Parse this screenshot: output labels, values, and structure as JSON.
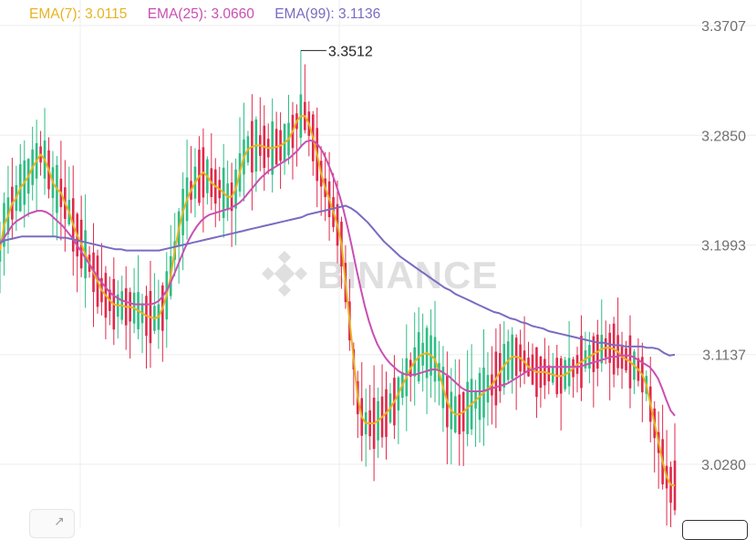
{
  "legend": [
    {
      "label": "EMA(7): 3.0115",
      "color": "#e6b422"
    },
    {
      "label": "EMA(25): 3.0660",
      "color": "#c94fb2"
    },
    {
      "label": "EMA(99): 3.1136",
      "color": "#7b6bc2"
    }
  ],
  "watermark": "BINANCE",
  "chart_data": {
    "type": "candlestick",
    "y_ticks": [
      "3.3707",
      "3.2850",
      "3.1993",
      "3.1137",
      "3.0280"
    ],
    "ylim": [
      2.975,
      3.398
    ],
    "grid": true,
    "high_annotation": "3.3512",
    "colors": {
      "up": "#2ebd85",
      "down": "#e0294a",
      "ema7": "#e6b422",
      "ema25": "#c94fb2",
      "ema99": "#7b6bc2"
    },
    "series": [
      {
        "name": "EMA(7)",
        "values": [
          3.195,
          3.215,
          3.222,
          3.232,
          3.236,
          3.244,
          3.248,
          3.253,
          3.26,
          3.265,
          3.27,
          3.266,
          3.258,
          3.248,
          3.243,
          3.24,
          3.232,
          3.225,
          3.215,
          3.207,
          3.2,
          3.192,
          3.185,
          3.178,
          3.171,
          3.164,
          3.16,
          3.156,
          3.153,
          3.152,
          3.152,
          3.151,
          3.151,
          3.15,
          3.148,
          3.146,
          3.144,
          3.143,
          3.142,
          3.143,
          3.15,
          3.16,
          3.175,
          3.195,
          3.212,
          3.225,
          3.235,
          3.242,
          3.248,
          3.253,
          3.256,
          3.253,
          3.248,
          3.245,
          3.243,
          3.24,
          3.237,
          3.237,
          3.243,
          3.256,
          3.268,
          3.274,
          3.276,
          3.277,
          3.277,
          3.276,
          3.275,
          3.275,
          3.276,
          3.277,
          3.279,
          3.282,
          3.288,
          3.296,
          3.3,
          3.3,
          3.294,
          3.283,
          3.27,
          3.255,
          3.244,
          3.235,
          3.225,
          3.215,
          3.2,
          3.17,
          3.14,
          3.11,
          3.08,
          3.065,
          3.06,
          3.06,
          3.06,
          3.062,
          3.065,
          3.068,
          3.072,
          3.077,
          3.083,
          3.09,
          3.096,
          3.103,
          3.108,
          3.112,
          3.114,
          3.115,
          3.113,
          3.11,
          3.1,
          3.088,
          3.077,
          3.07,
          3.067,
          3.067,
          3.069,
          3.072,
          3.075,
          3.078,
          3.081,
          3.084,
          3.087,
          3.09,
          3.095,
          3.1,
          3.105,
          3.109,
          3.112,
          3.112,
          3.111,
          3.108,
          3.104,
          3.102,
          3.1,
          3.1,
          3.1,
          3.099,
          3.098,
          3.097,
          3.097,
          3.098,
          3.1,
          3.103,
          3.106,
          3.108,
          3.11,
          3.112,
          3.114,
          3.116,
          3.118,
          3.119,
          3.119,
          3.118,
          3.116,
          3.112,
          3.11,
          3.108,
          3.105,
          3.102,
          3.098,
          3.09,
          3.075,
          3.06,
          3.045,
          3.03,
          3.018,
          3.012,
          3.0115
        ]
      },
      {
        "name": "EMA(25)",
        "values": [
          3.2,
          3.205,
          3.21,
          3.215,
          3.218,
          3.22,
          3.222,
          3.224,
          3.225,
          3.226,
          3.226,
          3.225,
          3.223,
          3.22,
          3.217,
          3.214,
          3.21,
          3.206,
          3.201,
          3.196,
          3.191,
          3.186,
          3.181,
          3.176,
          3.171,
          3.167,
          3.163,
          3.16,
          3.158,
          3.156,
          3.155,
          3.154,
          3.153,
          3.153,
          3.153,
          3.153,
          3.153,
          3.154,
          3.156,
          3.16,
          3.165,
          3.172,
          3.18,
          3.188,
          3.196,
          3.203,
          3.209,
          3.214,
          3.218,
          3.221,
          3.223,
          3.224,
          3.225,
          3.226,
          3.227,
          3.228,
          3.23,
          3.232,
          3.235,
          3.239,
          3.243,
          3.247,
          3.251,
          3.254,
          3.257,
          3.259,
          3.261,
          3.263,
          3.265,
          3.267,
          3.27,
          3.273,
          3.277,
          3.28,
          3.281,
          3.28,
          3.277,
          3.272,
          3.265,
          3.257,
          3.248,
          3.238,
          3.226,
          3.212,
          3.197,
          3.181,
          3.166,
          3.152,
          3.14,
          3.13,
          3.122,
          3.116,
          3.111,
          3.107,
          3.104,
          3.101,
          3.099,
          3.098,
          3.098,
          3.098,
          3.099,
          3.1,
          3.101,
          3.102,
          3.102,
          3.101,
          3.099,
          3.097,
          3.094,
          3.091,
          3.088,
          3.086,
          3.085,
          3.085,
          3.085,
          3.085,
          3.086,
          3.087,
          3.088,
          3.089,
          3.09,
          3.091,
          3.093,
          3.095,
          3.097,
          3.099,
          3.101,
          3.102,
          3.103,
          3.104,
          3.104,
          3.104,
          3.104,
          3.104,
          3.104,
          3.104,
          3.104,
          3.104,
          3.104,
          3.105,
          3.106,
          3.107,
          3.108,
          3.109,
          3.11,
          3.111,
          3.112,
          3.112,
          3.113,
          3.113,
          3.113,
          3.112,
          3.11,
          3.108,
          3.106,
          3.104,
          3.1,
          3.095,
          3.087,
          3.078,
          3.07,
          3.066
        ]
      },
      {
        "name": "EMA(99)",
        "values": [
          3.201,
          3.203,
          3.204,
          3.205,
          3.206,
          3.206,
          3.206,
          3.206,
          3.206,
          3.206,
          3.206,
          3.205,
          3.205,
          3.204,
          3.203,
          3.202,
          3.201,
          3.2,
          3.199,
          3.198,
          3.197,
          3.196,
          3.196,
          3.195,
          3.195,
          3.195,
          3.195,
          3.195,
          3.195,
          3.195,
          3.196,
          3.197,
          3.198,
          3.199,
          3.2,
          3.201,
          3.202,
          3.203,
          3.204,
          3.205,
          3.206,
          3.207,
          3.208,
          3.209,
          3.21,
          3.211,
          3.212,
          3.213,
          3.214,
          3.215,
          3.216,
          3.217,
          3.218,
          3.219,
          3.22,
          3.221,
          3.223,
          3.224,
          3.225,
          3.226,
          3.227,
          3.228,
          3.229,
          3.23,
          3.228,
          3.225,
          3.221,
          3.217,
          3.212,
          3.207,
          3.202,
          3.198,
          3.194,
          3.19,
          3.187,
          3.184,
          3.181,
          3.178,
          3.175,
          3.172,
          3.169,
          3.166,
          3.164,
          3.161,
          3.159,
          3.157,
          3.155,
          3.153,
          3.151,
          3.149,
          3.147,
          3.146,
          3.144,
          3.142,
          3.141,
          3.139,
          3.138,
          3.136,
          3.135,
          3.134,
          3.132,
          3.131,
          3.13,
          3.129,
          3.128,
          3.127,
          3.126,
          3.125,
          3.124,
          3.123,
          3.123,
          3.122,
          3.121,
          3.121,
          3.12,
          3.12,
          3.12,
          3.12,
          3.119,
          3.119,
          3.118,
          3.115,
          3.113,
          3.1136
        ]
      }
    ]
  }
}
